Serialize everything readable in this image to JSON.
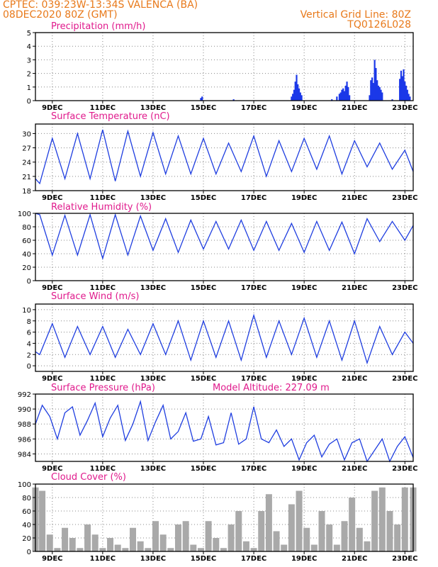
{
  "header": {
    "line1": "CPTEC:   039:23W-13:34S   VALENCA (BA)",
    "line2": "08DEC2020 80Z (GMT)",
    "right1": "Vertical Grid Line: 80Z",
    "right2": "TQ0126L028"
  },
  "colors": {
    "header": "#e8791a",
    "title": "#e01a8c",
    "line": "#1f3ee0",
    "bar": "#1b38e8",
    "cloud": "#a9a9a9"
  },
  "x_axis": {
    "start_day": 8.33,
    "end_day": 23.33,
    "tick_days": [
      9,
      11,
      13,
      15,
      17,
      19,
      21,
      23
    ],
    "tick_labels": [
      "9DEC",
      "11DEC",
      "13DEC",
      "15DEC",
      "17DEC",
      "19DEC",
      "21DEC",
      "23DEC"
    ]
  },
  "chart_data": [
    {
      "type": "bar",
      "title": "Precipitation (mm/h)",
      "ylim": [
        0,
        5
      ],
      "yticks": [
        0,
        1,
        2,
        3,
        4,
        5
      ],
      "x": [
        14.9,
        14.95,
        16.2,
        18.5,
        18.55,
        18.6,
        18.65,
        18.7,
        18.75,
        18.8,
        18.85,
        18.9,
        20.1,
        20.3,
        20.4,
        20.45,
        20.5,
        20.55,
        20.6,
        20.65,
        20.7,
        20.75,
        20.8,
        21.6,
        21.65,
        21.7,
        21.75,
        21.8,
        21.85,
        21.9,
        21.95,
        22.0,
        22.05,
        22.1,
        22.5,
        22.8,
        22.85,
        22.9,
        22.95,
        23.0,
        23.05,
        23.1,
        23.15,
        23.2
      ],
      "values": [
        0.2,
        0.3,
        0.1,
        0.3,
        0.5,
        0.8,
        1.4,
        1.9,
        1.2,
        0.9,
        0.6,
        0.4,
        0.1,
        0.3,
        0.5,
        0.6,
        0.8,
        0.9,
        0.7,
        1.1,
        1.4,
        1.0,
        0.4,
        0.4,
        1.5,
        1.7,
        1.3,
        3.0,
        2.4,
        1.5,
        1.1,
        1.0,
        0.8,
        0.6,
        0.1,
        1.6,
        2.2,
        1.8,
        2.3,
        1.4,
        1.1,
        0.8,
        0.5,
        0.3
      ]
    },
    {
      "type": "line",
      "title": "Surface Temperature (nC)",
      "ylim": [
        18,
        32
      ],
      "yticks": [
        18,
        21,
        24,
        27,
        30
      ],
      "x": [
        8.33,
        8.5,
        9.0,
        9.5,
        10.0,
        10.5,
        11.0,
        11.5,
        12.0,
        12.5,
        13.0,
        13.5,
        14.0,
        14.5,
        15.0,
        15.5,
        16.0,
        16.5,
        17.0,
        17.5,
        18.0,
        18.5,
        19.0,
        19.5,
        20.0,
        20.5,
        21.0,
        21.5,
        22.0,
        22.5,
        23.0,
        23.33
      ],
      "values": [
        20.5,
        19.5,
        29.0,
        20.5,
        30.0,
        20.5,
        30.8,
        20.0,
        30.5,
        21.0,
        30.2,
        21.5,
        29.5,
        21.5,
        29.0,
        21.5,
        28.0,
        22.0,
        29.5,
        21.0,
        28.5,
        22.0,
        29.0,
        22.5,
        29.5,
        21.5,
        28.5,
        23.0,
        28.0,
        22.5,
        26.5,
        22.0
      ]
    },
    {
      "type": "line",
      "title": "Relative Humidity (%)",
      "ylim": [
        0,
        100
      ],
      "yticks": [
        0,
        20,
        40,
        60,
        80,
        100
      ],
      "x": [
        8.33,
        8.5,
        9.0,
        9.5,
        10.0,
        10.5,
        11.0,
        11.5,
        12.0,
        12.5,
        13.0,
        13.5,
        14.0,
        14.5,
        15.0,
        15.5,
        16.0,
        16.5,
        17.0,
        17.5,
        18.0,
        18.5,
        19.0,
        19.5,
        20.0,
        20.5,
        21.0,
        21.5,
        22.0,
        22.5,
        23.0,
        23.33
      ],
      "values": [
        100,
        98,
        38,
        97,
        38,
        98,
        33,
        98,
        38,
        96,
        45,
        92,
        42,
        90,
        47,
        88,
        47,
        90,
        45,
        88,
        45,
        85,
        42,
        88,
        45,
        87,
        40,
        92,
        58,
        88,
        60,
        82
      ]
    },
    {
      "type": "line",
      "title": "Surface Wind (m/s)",
      "ylim": [
        -1,
        11
      ],
      "yticks": [
        0,
        2,
        4,
        6,
        8,
        10
      ],
      "x": [
        8.33,
        8.5,
        9.0,
        9.5,
        10.0,
        10.5,
        11.0,
        11.5,
        12.0,
        12.5,
        13.0,
        13.5,
        14.0,
        14.5,
        15.0,
        15.5,
        16.0,
        16.5,
        17.0,
        17.5,
        18.0,
        18.5,
        19.0,
        19.5,
        20.0,
        20.5,
        21.0,
        21.5,
        22.0,
        22.5,
        23.0,
        23.33
      ],
      "values": [
        2.5,
        2.0,
        7.5,
        1.5,
        7.0,
        2.0,
        7.0,
        1.5,
        6.5,
        2.0,
        7.5,
        2.0,
        8.0,
        1.0,
        8.0,
        1.5,
        8.0,
        1.0,
        9.0,
        1.5,
        8.0,
        2.0,
        8.5,
        1.5,
        8.0,
        1.0,
        8.0,
        0.5,
        7.0,
        2.0,
        6.0,
        4.0
      ]
    },
    {
      "type": "line",
      "title": "Surface Pressure (hPa)",
      "annotation": "Model Altitude: 227.09 m",
      "ylim": [
        983,
        992
      ],
      "yticks": [
        984,
        986,
        988,
        990,
        992
      ],
      "x": [
        8.33,
        8.6,
        8.9,
        9.2,
        9.5,
        9.8,
        10.1,
        10.4,
        10.7,
        11.0,
        11.3,
        11.6,
        11.9,
        12.2,
        12.5,
        12.8,
        13.1,
        13.4,
        13.7,
        14.0,
        14.3,
        14.6,
        14.9,
        15.2,
        15.5,
        15.8,
        16.1,
        16.4,
        16.7,
        17.0,
        17.3,
        17.6,
        17.9,
        18.2,
        18.5,
        18.8,
        19.1,
        19.4,
        19.7,
        20.0,
        20.3,
        20.6,
        20.9,
        21.2,
        21.5,
        21.8,
        22.1,
        22.4,
        22.7,
        23.0,
        23.33
      ],
      "values": [
        988.0,
        990.5,
        989.0,
        986.0,
        989.5,
        990.3,
        986.5,
        988.5,
        990.8,
        986.3,
        988.8,
        990.5,
        985.8,
        988.0,
        991.0,
        985.8,
        988.3,
        990.5,
        986.0,
        987.0,
        989.5,
        985.7,
        986.0,
        989.0,
        985.2,
        985.5,
        989.5,
        985.3,
        986.0,
        990.3,
        986.0,
        985.5,
        987.2,
        985.0,
        986.0,
        983.2,
        985.5,
        986.5,
        983.6,
        985.3,
        986.0,
        983.2,
        985.5,
        986.0,
        983.0,
        984.5,
        986.0,
        983.0,
        985.0,
        986.3,
        983.5
      ]
    },
    {
      "type": "bar",
      "title": "Cloud Cover (%)",
      "ylim": [
        0,
        100
      ],
      "yticks": [
        0,
        20,
        40,
        60,
        80,
        100
      ],
      "x": [
        8.33,
        8.6,
        8.9,
        9.2,
        9.5,
        9.8,
        10.1,
        10.4,
        10.7,
        11.0,
        11.3,
        11.6,
        11.9,
        12.2,
        12.5,
        12.8,
        13.1,
        13.4,
        13.7,
        14.0,
        14.3,
        14.6,
        14.9,
        15.2,
        15.5,
        15.8,
        16.1,
        16.4,
        16.7,
        17.0,
        17.3,
        17.6,
        17.9,
        18.2,
        18.5,
        18.8,
        19.1,
        19.4,
        19.7,
        20.0,
        20.3,
        20.6,
        20.9,
        21.2,
        21.5,
        21.8,
        22.1,
        22.4,
        22.7,
        23.0,
        23.33
      ],
      "values": [
        95,
        90,
        25,
        5,
        35,
        20,
        5,
        40,
        25,
        5,
        20,
        10,
        5,
        35,
        15,
        5,
        45,
        25,
        5,
        40,
        45,
        10,
        5,
        45,
        20,
        5,
        40,
        60,
        15,
        5,
        60,
        85,
        30,
        10,
        70,
        90,
        35,
        10,
        60,
        40,
        10,
        45,
        80,
        35,
        15,
        90,
        95,
        60,
        40,
        95,
        95
      ]
    }
  ]
}
